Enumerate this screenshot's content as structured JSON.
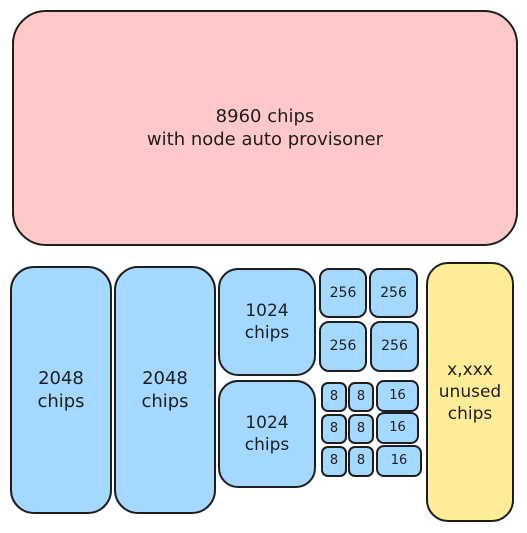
{
  "colors": {
    "red": "#ffc9c9",
    "blue": "#a5d8ff",
    "yellow": "#ffec99",
    "stroke": "#1e1e1e"
  },
  "top_block": {
    "line1": "8960 chips",
    "line2": "with node auto provisoner"
  },
  "block_2048_a": {
    "line1": "2048",
    "line2": "chips"
  },
  "block_2048_b": {
    "line1": "2048",
    "line2": "chips"
  },
  "block_1024_a": {
    "line1": "1024",
    "line2": "chips"
  },
  "block_1024_b": {
    "line1": "1024",
    "line2": "chips"
  },
  "blocks_256": [
    "256",
    "256",
    "256",
    "256"
  ],
  "blocks_8": [
    "8",
    "8",
    "8",
    "8",
    "8",
    "8"
  ],
  "blocks_16": [
    "16",
    "16",
    "16"
  ],
  "unused_block": {
    "line1": "x,xxx",
    "line2": "unused",
    "line3": "chips"
  }
}
